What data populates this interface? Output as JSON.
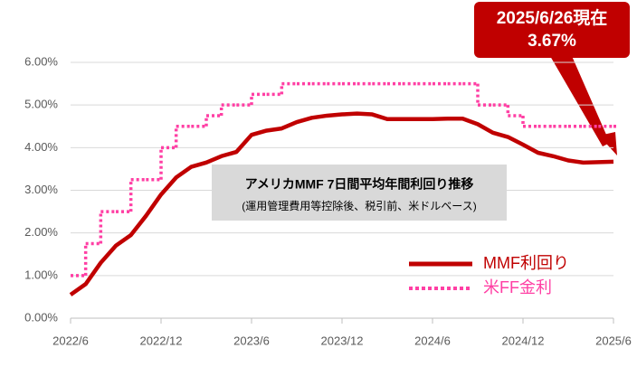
{
  "chart_data": {
    "type": "line",
    "title": "アメリカMMF 7日間平均年間利回り推移",
    "subtitle": "(運用管理費用等控除後、税引前、米ドルベース)",
    "annotation": {
      "date": "2025/6/26現在",
      "value_label": "3.67%"
    },
    "x": [
      "2022/6",
      null,
      null,
      null,
      null,
      null,
      "2022/12",
      null,
      null,
      null,
      null,
      null,
      "2023/6",
      null,
      null,
      null,
      null,
      null,
      "2023/12",
      null,
      null,
      null,
      null,
      null,
      "2024/6",
      null,
      null,
      null,
      null,
      null,
      "2024/12",
      null,
      null,
      null,
      null,
      null,
      "2025/6"
    ],
    "series": [
      {
        "name": "MMF利回り",
        "color": "#c00000",
        "style": "solid",
        "values": [
          0.55,
          0.8,
          1.3,
          1.7,
          1.95,
          2.4,
          2.9,
          3.3,
          3.55,
          3.65,
          3.8,
          3.9,
          4.3,
          4.4,
          4.45,
          4.6,
          4.7,
          4.75,
          4.78,
          4.8,
          4.78,
          4.67,
          4.67,
          4.67,
          4.67,
          4.68,
          4.68,
          4.55,
          4.35,
          4.25,
          4.07,
          3.88,
          3.8,
          3.7,
          3.65,
          3.66,
          3.67
        ]
      },
      {
        "name": "米FF金利",
        "color": "#ff3fa4",
        "style": "dotted-step",
        "values": [
          1.0,
          1.75,
          2.5,
          2.5,
          3.25,
          3.25,
          4.0,
          4.5,
          4.5,
          4.75,
          5.0,
          5.0,
          5.25,
          5.25,
          5.5,
          5.5,
          5.5,
          5.5,
          5.5,
          5.5,
          5.5,
          5.5,
          5.5,
          5.5,
          5.5,
          5.5,
          5.5,
          5.0,
          5.0,
          4.75,
          4.5,
          4.5,
          4.5,
          4.5,
          4.5,
          4.5,
          4.5
        ]
      }
    ],
    "ylim": [
      0,
      6
    ],
    "yticks": [
      {
        "value": 0,
        "label": "0.00%"
      },
      {
        "value": 1,
        "label": "1.00%"
      },
      {
        "value": 2,
        "label": "2.00%"
      },
      {
        "value": 3,
        "label": "3.00%"
      },
      {
        "value": 4,
        "label": "4.00%"
      },
      {
        "value": 5,
        "label": "5.00%"
      },
      {
        "value": 6,
        "label": "6.00%"
      }
    ],
    "grid": true,
    "legend": "lower-right"
  }
}
